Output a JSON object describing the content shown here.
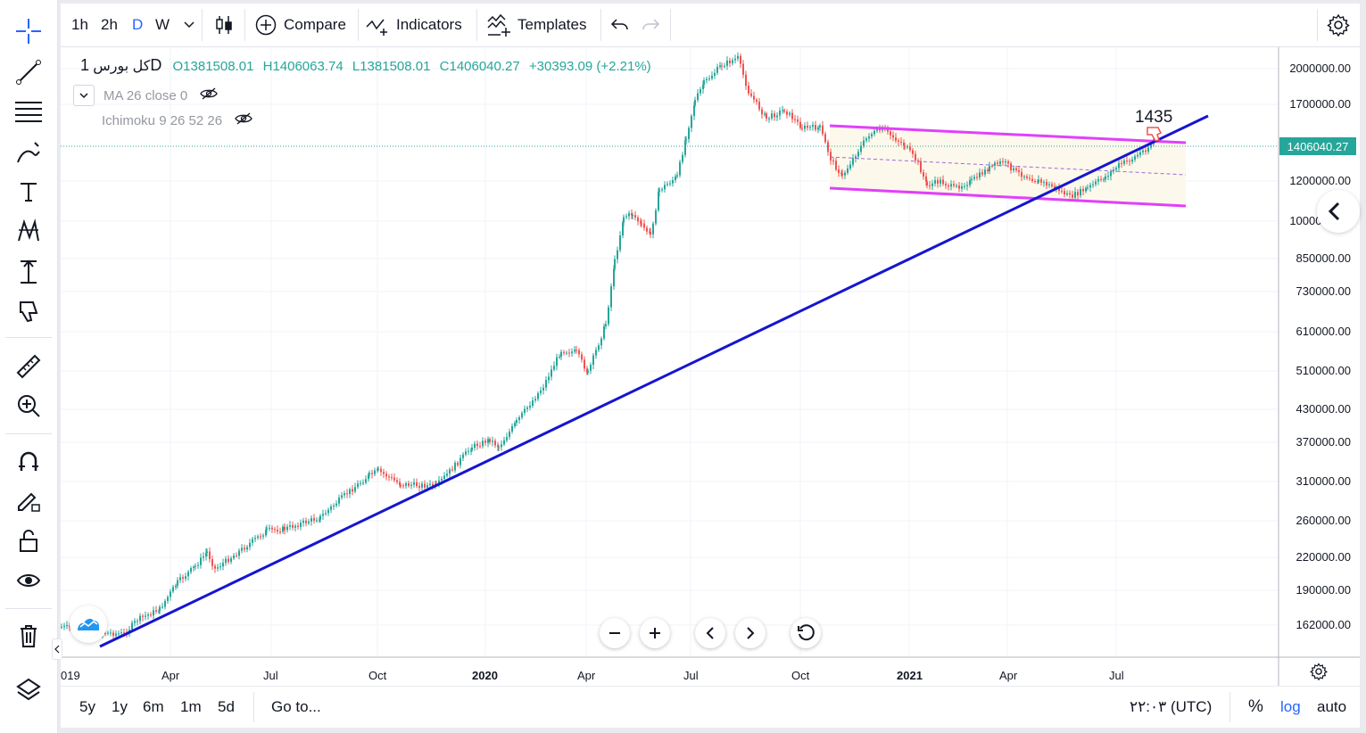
{
  "toolbar": {
    "intervals": [
      "1h",
      "2h",
      "D",
      "W"
    ],
    "active_interval": "D",
    "compare_label": "Compare",
    "indicators_label": "Indicators",
    "templates_label": "Templates"
  },
  "legend": {
    "symbol": "کل بورس",
    "interval": "1D",
    "open": "O1381508.01",
    "high": "H1406063.74",
    "low": "L1381508.01",
    "close": "C1406040.27",
    "change": "+30393.09 (+2.21%)",
    "ma_label": "MA 26 close 0",
    "ichimoku_label": "Ichimoku 9 26 52 26"
  },
  "price_axis": {
    "labels": [
      "2000000.00",
      "1700000.00",
      "1200000.00",
      "1000000.00",
      "850000.00",
      "730000.00",
      "610000.00",
      "510000.00",
      "430000.00",
      "370000.00",
      "310000.00",
      "260000.00",
      "220000.00",
      "190000.00",
      "162000.00"
    ],
    "last_price": "1406040.27",
    "last_price_color": "#26a69a"
  },
  "time_axis": {
    "labels": [
      "019",
      "Apr",
      "Jul",
      "Oct",
      "2020",
      "Apr",
      "Jul",
      "Oct",
      "2021",
      "Apr",
      "Jul"
    ]
  },
  "annotation": {
    "text": "1435"
  },
  "colors": {
    "trendline": "#1515d0",
    "channel": "#e040fb",
    "accent": "#2962ff",
    "up": "#26a69a",
    "down": "#ef5350"
  },
  "bottombar": {
    "ranges": [
      "5y",
      "1y",
      "6m",
      "1m",
      "5d"
    ],
    "goto_label": "Go to...",
    "time_label": "۲۲:۰۳ (UTC)",
    "percent_label": "%",
    "log_label": "log",
    "auto_label": "auto"
  },
  "left_tools": [
    "crosshair-icon",
    "trend-line-icon",
    "fib-icon",
    "brush-icon",
    "text-icon",
    "pattern-icon",
    "measure-icon",
    "thumb-down-icon",
    "ruler-icon",
    "zoom-in-icon",
    "magnet-icon",
    "pencil-lock-icon",
    "lock-icon",
    "eye-icon",
    "trash-icon",
    "layers-icon"
  ]
}
